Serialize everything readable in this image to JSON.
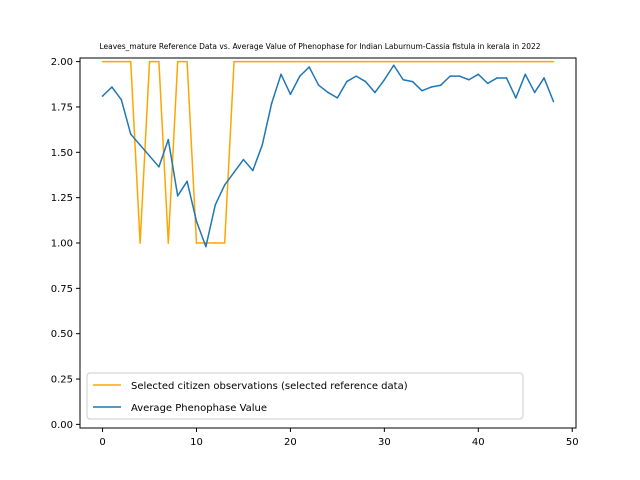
{
  "chart_data": {
    "type": "line",
    "title": "Leaves_mature Reference Data vs. Average Value of Phenophase for Indian Laburnum-Cassia fistula in kerala in 2022",
    "xlabel": "",
    "ylabel": "",
    "xlim": [
      -2.4,
      50.4
    ],
    "ylim": [
      -0.02,
      2.02
    ],
    "xticks": [
      0,
      10,
      20,
      30,
      40,
      50
    ],
    "yticks": [
      0.0,
      0.25,
      0.5,
      0.75,
      1.0,
      1.25,
      1.5,
      1.75,
      2.0
    ],
    "ytick_labels": [
      "0.00",
      "0.25",
      "0.50",
      "0.75",
      "1.00",
      "1.25",
      "1.50",
      "1.75",
      "2.00"
    ],
    "legend_position": "lower-left",
    "grid": false,
    "x": [
      0,
      1,
      2,
      3,
      4,
      5,
      6,
      7,
      8,
      9,
      10,
      11,
      12,
      13,
      14,
      15,
      16,
      17,
      18,
      19,
      20,
      21,
      22,
      23,
      24,
      25,
      26,
      27,
      28,
      29,
      30,
      31,
      32,
      33,
      34,
      35,
      36,
      37,
      38,
      39,
      40,
      41,
      42,
      43,
      44,
      45,
      46,
      47,
      48
    ],
    "series": [
      {
        "name": "Selected citizen observations (selected reference data)",
        "color": "#ffa500",
        "values": [
          2,
          2,
          2,
          2,
          1,
          2,
          2,
          1,
          2,
          2,
          1,
          1,
          1,
          1,
          2,
          2,
          2,
          2,
          2,
          2,
          2,
          2,
          2,
          2,
          2,
          2,
          2,
          2,
          2,
          2,
          2,
          2,
          2,
          2,
          2,
          2,
          2,
          2,
          2,
          2,
          2,
          2,
          2,
          2,
          2,
          2,
          2,
          2,
          2
        ]
      },
      {
        "name": "Average Phenophase Value",
        "color": "#1f77b4",
        "values": [
          1.81,
          1.86,
          1.79,
          1.6,
          1.54,
          1.48,
          1.42,
          1.57,
          1.26,
          1.34,
          1.12,
          0.98,
          1.21,
          1.32,
          1.39,
          1.46,
          1.4,
          1.54,
          1.77,
          1.93,
          1.82,
          1.92,
          1.97,
          1.87,
          1.83,
          1.8,
          1.89,
          1.92,
          1.89,
          1.83,
          1.9,
          1.98,
          1.9,
          1.89,
          1.84,
          1.86,
          1.87,
          1.92,
          1.92,
          1.9,
          1.93,
          1.88,
          1.91,
          1.91,
          1.8,
          1.93,
          1.83,
          1.91,
          1.78
        ]
      }
    ]
  }
}
